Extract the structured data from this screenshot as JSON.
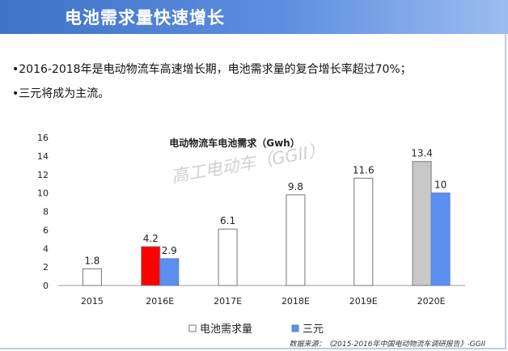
{
  "header": {
    "title": "电池需求量快速增长"
  },
  "bullets": [
    "•2016-2018年是电动物流车高速增长期，电池需求量的复合增长率超过70%；",
    "•三元将成为主流。"
  ],
  "colors": {
    "header": "#4a7fd6",
    "battery_default": "#ffffff",
    "battery_2016": "#ff0000",
    "battery_2020": "#c8c8c8",
    "ternary": "#5b8ff0"
  },
  "chart_data": {
    "type": "bar",
    "title": "电动物流车电池需求（Gwh）",
    "watermark": "高工电动车（GGII）",
    "categories": [
      "2015",
      "2016E",
      "2017E",
      "2018E",
      "2019E",
      "2020E"
    ],
    "ylim": [
      0,
      16
    ],
    "yticks": [
      0,
      2,
      4,
      6,
      8,
      10,
      12,
      14,
      16
    ],
    "grid": false,
    "legend_position": "bottom",
    "series": [
      {
        "name": "电池需求量",
        "values": [
          1.8,
          4.2,
          6.1,
          9.8,
          11.6,
          13.4
        ],
        "labels": [
          "1.8",
          "4.2",
          "6.1",
          "9.8",
          "11.6",
          "13.4"
        ]
      },
      {
        "name": "三元",
        "values": [
          null,
          2.9,
          null,
          null,
          null,
          10
        ],
        "labels": [
          null,
          "2.9",
          null,
          null,
          null,
          "10"
        ]
      }
    ],
    "source": "数据来源：《2015-2016年中国电动物流车调研报告》-GGII"
  }
}
